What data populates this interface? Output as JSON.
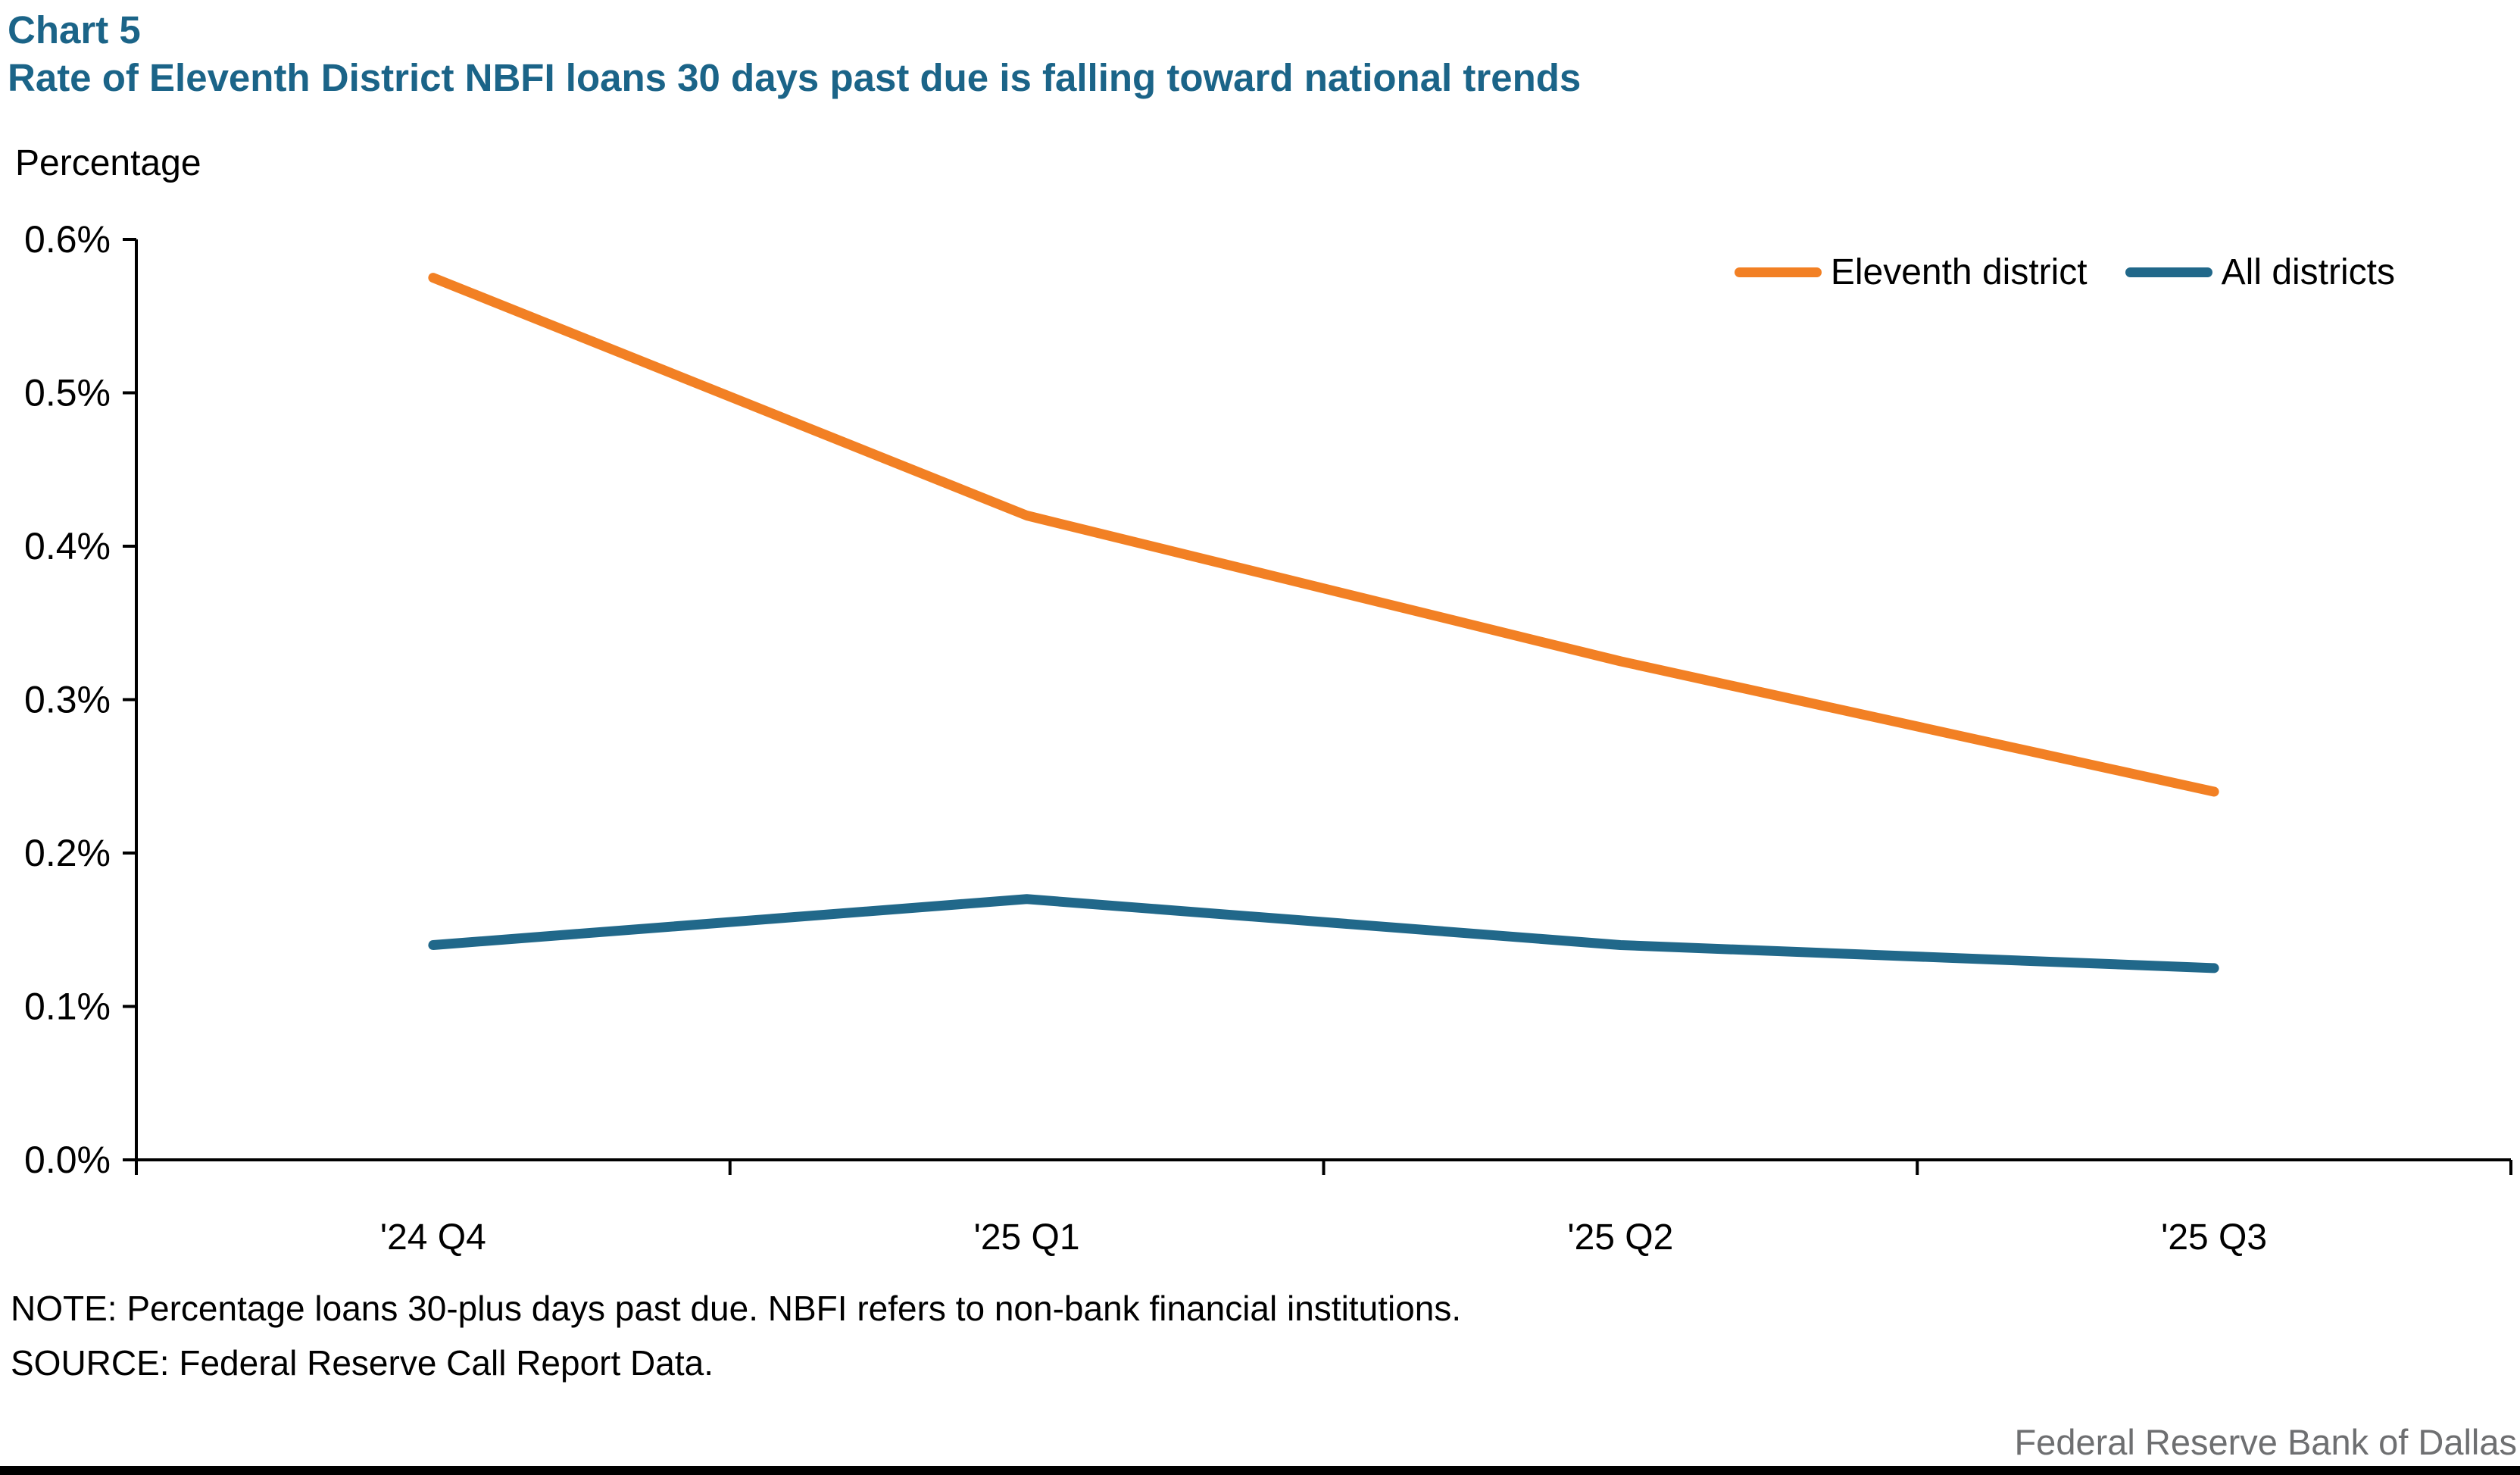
{
  "header": {
    "chart_label": "Chart 5",
    "title": "Rate of Eleventh District NBFI loans 30 days past due is falling toward national trends"
  },
  "chart_data": {
    "type": "line",
    "title": "Rate of Eleventh District NBFI loans 30 days past due is falling toward national trends",
    "categories": [
      "'24 Q4",
      "'25 Q1",
      "'25 Q2",
      "'25 Q3"
    ],
    "series": [
      {
        "name": "Eleventh district",
        "color": "#F28024",
        "values": [
          0.575,
          0.42,
          0.325,
          0.24
        ]
      },
      {
        "name": "All districts",
        "color": "#21688A",
        "values": [
          0.14,
          0.17,
          0.14,
          0.125
        ]
      }
    ],
    "xlabel": "",
    "ylabel": "Percentage",
    "ylim": [
      0.0,
      0.6
    ],
    "ytick_step": 0.1,
    "ytick_labels": [
      "0.0%",
      "0.1%",
      "0.2%",
      "0.3%",
      "0.4%",
      "0.5%",
      "0.6%"
    ],
    "grid": false,
    "legend_position": "top-right"
  },
  "footer": {
    "note": "NOTE: Percentage loans 30-plus days past due. NBFI refers to non-bank financial institutions.",
    "source": "SOURCE: Federal Reserve Call Report Data.",
    "branding": "Federal Reserve Bank of Dallas"
  },
  "colors": {
    "title_text": "#1B6488",
    "axis": "#000000",
    "eleventh_district": "#F28024",
    "all_districts": "#21688A",
    "branding_text": "#6E6F71",
    "footer_bar": "#000000"
  }
}
